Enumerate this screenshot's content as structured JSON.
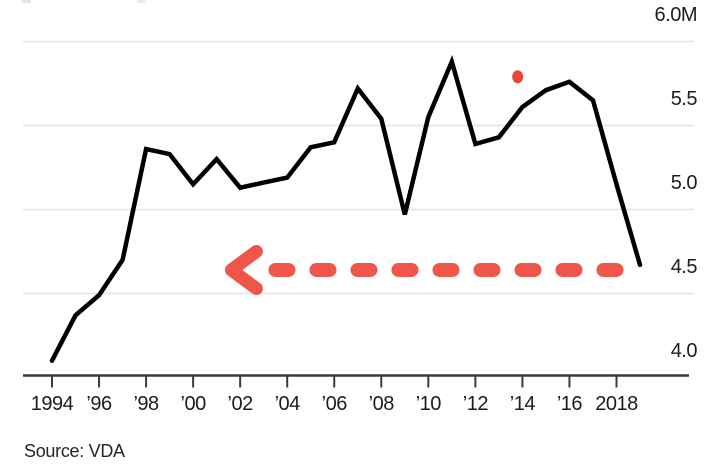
{
  "colors": {
    "line": "#000000",
    "grid": "#e3e3e3",
    "axis": "#3a3a3a",
    "tick_text": "#1d1d1d",
    "source_text": "#262626",
    "annotation_red": "#f0554a",
    "dot_red": "#e74638"
  },
  "chart_data": {
    "type": "line",
    "x": [
      1994,
      1995,
      1996,
      1997,
      1998,
      1999,
      2000,
      2001,
      2002,
      2003,
      2004,
      2005,
      2006,
      2007,
      2008,
      2009,
      2010,
      2011,
      2012,
      2013,
      2014,
      2015,
      2016,
      2017,
      2018,
      2019
    ],
    "values": [
      4.1,
      4.37,
      4.49,
      4.7,
      5.36,
      5.33,
      5.15,
      5.3,
      5.13,
      5.16,
      5.19,
      5.37,
      5.4,
      5.72,
      5.54,
      4.97,
      5.55,
      5.88,
      5.39,
      5.43,
      5.61,
      5.71,
      5.76,
      5.65,
      5.15,
      4.67
    ],
    "ylim": [
      4.0,
      6.0
    ],
    "grid": "horizontal",
    "legend": "none",
    "yticks": {
      "side": "right",
      "values": [
        6.0,
        5.5,
        5.0,
        4.5,
        4.0
      ],
      "labels": [
        "6.0M",
        "5.5",
        "5.0",
        "4.5",
        "4.0"
      ]
    },
    "xticks": {
      "values": [
        1994,
        1996,
        1998,
        2000,
        2002,
        2004,
        2006,
        2008,
        2010,
        2012,
        2014,
        2016,
        2018
      ],
      "labels": [
        "1994",
        "’96",
        "’98",
        "’00",
        "’02",
        "’04",
        "’06",
        "’08",
        "’10",
        "’12",
        "’14",
        "’16",
        "2018"
      ]
    },
    "annotations": {
      "dashed_arrow": {
        "shape": "dashed-arrow",
        "direction": "left",
        "at_value": 4.64,
        "from_year": 2018.0,
        "to_year": 2001.5
      },
      "dot": {
        "year": 2013.8,
        "value": 5.79
      }
    },
    "source": "Source: VDA"
  }
}
